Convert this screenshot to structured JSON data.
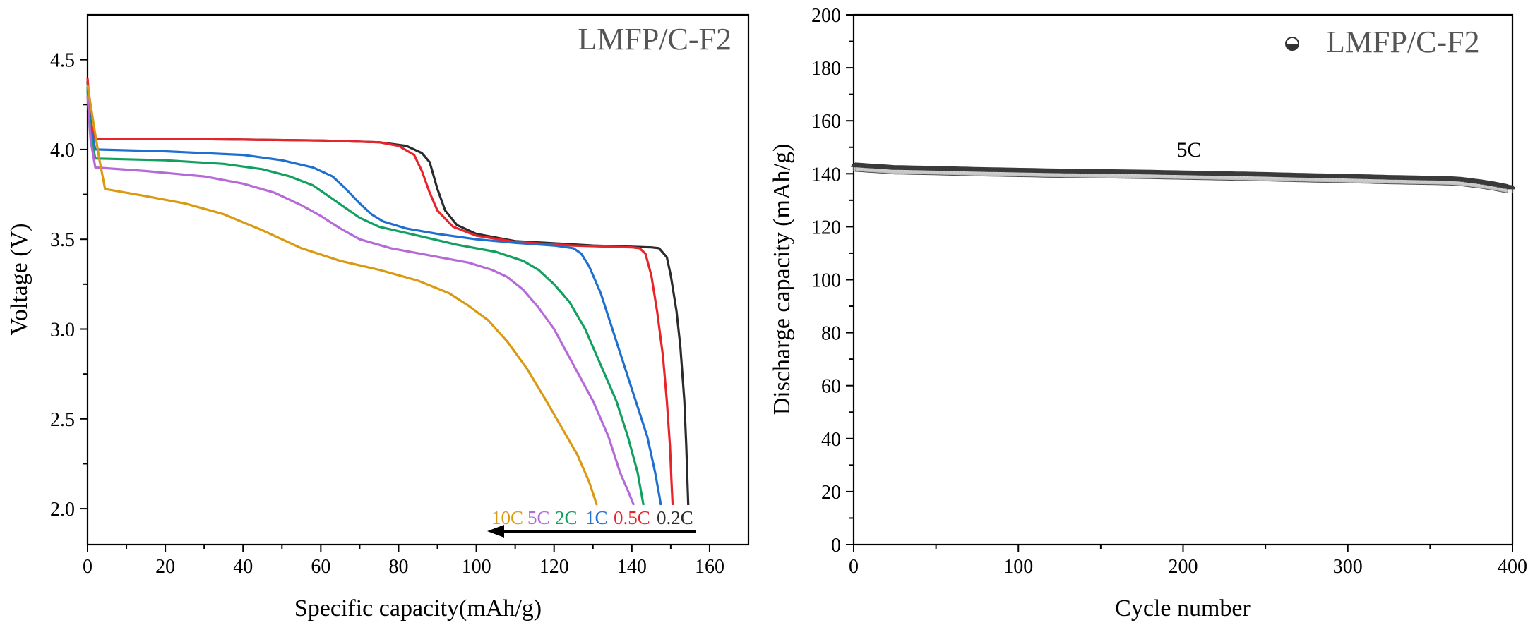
{
  "chart_data": [
    {
      "type": "line",
      "title": "",
      "xlabel": "Specific capacity(mAh/g)",
      "ylabel": "Voltage (V)",
      "xlim": [
        0,
        170
      ],
      "ylim": [
        1.8,
        4.75
      ],
      "xticks": [
        "0",
        "20",
        "40",
        "60",
        "80",
        "100",
        "120",
        "140",
        "160"
      ],
      "yticks": [
        "2.0",
        "2.5",
        "3.0",
        "3.5",
        "4.0",
        "4.5"
      ],
      "annotation": "LMFP/C-F2",
      "legend_labels": [
        "10C",
        "5C",
        "2C",
        "1C",
        "0.5C",
        "0.2C"
      ],
      "series": [
        {
          "name": "0.2C",
          "color": "#2b2b2b",
          "points": [
            [
              0,
              4.38
            ],
            [
              0.8,
              4.15
            ],
            [
              2,
              4.06
            ],
            [
              20,
              4.06
            ],
            [
              40,
              4.055
            ],
            [
              60,
              4.05
            ],
            [
              75,
              4.04
            ],
            [
              82,
              4.02
            ],
            [
              86,
              3.98
            ],
            [
              88,
              3.93
            ],
            [
              90,
              3.78
            ],
            [
              92,
              3.66
            ],
            [
              95,
              3.58
            ],
            [
              100,
              3.53
            ],
            [
              110,
              3.49
            ],
            [
              130,
              3.465
            ],
            [
              145,
              3.455
            ],
            [
              147,
              3.45
            ],
            [
              149,
              3.4
            ],
            [
              150,
              3.3
            ],
            [
              151.5,
              3.1
            ],
            [
              152.5,
              2.9
            ],
            [
              153.5,
              2.6
            ],
            [
              154,
              2.35
            ],
            [
              154.3,
              2.15
            ],
            [
              154.5,
              2.02
            ]
          ]
        },
        {
          "name": "0.5C",
          "color": "#e8242a",
          "points": [
            [
              0,
              4.4
            ],
            [
              0.8,
              4.15
            ],
            [
              2,
              4.06
            ],
            [
              20,
              4.06
            ],
            [
              40,
              4.055
            ],
            [
              60,
              4.05
            ],
            [
              75,
              4.04
            ],
            [
              80,
              4.02
            ],
            [
              84,
              3.97
            ],
            [
              86,
              3.88
            ],
            [
              88,
              3.76
            ],
            [
              90,
              3.66
            ],
            [
              94,
              3.57
            ],
            [
              100,
              3.52
            ],
            [
              110,
              3.485
            ],
            [
              125,
              3.465
            ],
            [
              140,
              3.455
            ],
            [
              142,
              3.45
            ],
            [
              143.5,
              3.42
            ],
            [
              145,
              3.3
            ],
            [
              146.5,
              3.1
            ],
            [
              148,
              2.85
            ],
            [
              149,
              2.6
            ],
            [
              149.8,
              2.35
            ],
            [
              150.2,
              2.15
            ],
            [
              150.5,
              2.02
            ]
          ]
        },
        {
          "name": "1C",
          "color": "#1f6fd0",
          "points": [
            [
              0,
              4.35
            ],
            [
              0.8,
              4.12
            ],
            [
              2,
              4.0
            ],
            [
              20,
              3.99
            ],
            [
              40,
              3.97
            ],
            [
              50,
              3.94
            ],
            [
              58,
              3.9
            ],
            [
              63,
              3.85
            ],
            [
              66,
              3.79
            ],
            [
              70,
              3.7
            ],
            [
              73,
              3.64
            ],
            [
              76,
              3.6
            ],
            [
              82,
              3.56
            ],
            [
              90,
              3.53
            ],
            [
              100,
              3.5
            ],
            [
              110,
              3.48
            ],
            [
              120,
              3.465
            ],
            [
              125,
              3.45
            ],
            [
              127,
              3.42
            ],
            [
              129,
              3.35
            ],
            [
              132,
              3.2
            ],
            [
              135,
              3.0
            ],
            [
              138,
              2.8
            ],
            [
              141,
              2.6
            ],
            [
              144,
              2.4
            ],
            [
              146,
              2.2
            ],
            [
              147.5,
              2.02
            ]
          ]
        },
        {
          "name": "2C",
          "color": "#12a061",
          "points": [
            [
              0,
              4.33
            ],
            [
              0.8,
              4.08
            ],
            [
              2,
              3.95
            ],
            [
              20,
              3.94
            ],
            [
              35,
              3.92
            ],
            [
              45,
              3.89
            ],
            [
              52,
              3.85
            ],
            [
              58,
              3.8
            ],
            [
              62,
              3.74
            ],
            [
              66,
              3.68
            ],
            [
              70,
              3.62
            ],
            [
              75,
              3.57
            ],
            [
              85,
              3.52
            ],
            [
              95,
              3.47
            ],
            [
              105,
              3.43
            ],
            [
              112,
              3.38
            ],
            [
              116,
              3.33
            ],
            [
              120,
              3.25
            ],
            [
              124,
              3.15
            ],
            [
              128,
              3.0
            ],
            [
              132,
              2.8
            ],
            [
              136,
              2.6
            ],
            [
              139,
              2.4
            ],
            [
              141.5,
              2.2
            ],
            [
              143,
              2.02
            ]
          ]
        },
        {
          "name": "5C",
          "color": "#b56ad8",
          "points": [
            [
              0,
              4.3
            ],
            [
              0.8,
              4.05
            ],
            [
              2,
              3.9
            ],
            [
              15,
              3.88
            ],
            [
              30,
              3.85
            ],
            [
              40,
              3.81
            ],
            [
              48,
              3.76
            ],
            [
              55,
              3.69
            ],
            [
              60,
              3.63
            ],
            [
              65,
              3.56
            ],
            [
              70,
              3.5
            ],
            [
              78,
              3.45
            ],
            [
              88,
              3.41
            ],
            [
              98,
              3.37
            ],
            [
              104,
              3.33
            ],
            [
              108,
              3.29
            ],
            [
              112,
              3.22
            ],
            [
              116,
              3.12
            ],
            [
              120,
              3.0
            ],
            [
              125,
              2.8
            ],
            [
              130,
              2.6
            ],
            [
              134,
              2.4
            ],
            [
              137,
              2.2
            ],
            [
              139,
              2.1
            ],
            [
              140.5,
              2.02
            ]
          ]
        },
        {
          "name": "10C",
          "color": "#d99a12",
          "points": [
            [
              0,
              4.36
            ],
            [
              1.5,
              4.15
            ],
            [
              3,
              3.95
            ],
            [
              4.5,
              3.78
            ],
            [
              15,
              3.74
            ],
            [
              25,
              3.7
            ],
            [
              35,
              3.64
            ],
            [
              45,
              3.55
            ],
            [
              55,
              3.45
            ],
            [
              65,
              3.38
            ],
            [
              75,
              3.33
            ],
            [
              85,
              3.27
            ],
            [
              93,
              3.2
            ],
            [
              98,
              3.13
            ],
            [
              103,
              3.05
            ],
            [
              108,
              2.93
            ],
            [
              113,
              2.78
            ],
            [
              118,
              2.6
            ],
            [
              122,
              2.45
            ],
            [
              126,
              2.3
            ],
            [
              129,
              2.15
            ],
            [
              131,
              2.02
            ]
          ]
        }
      ]
    },
    {
      "type": "scatter",
      "title": "",
      "xlabel": "Cycle number",
      "ylabel": "Discharge capacity (mAh/g)",
      "xlim": [
        0,
        400
      ],
      "ylim": [
        0,
        200
      ],
      "xticks": [
        "0",
        "100",
        "200",
        "300",
        "400"
      ],
      "yticks": [
        "0",
        "20",
        "40",
        "60",
        "80",
        "100",
        "120",
        "140",
        "160",
        "180",
        "200"
      ],
      "legend": {
        "name": "LMFP/C-F2",
        "position": "top-right"
      },
      "annotation": "5C",
      "series": [
        {
          "name": "LMFP/C-F2",
          "color": "#3a3a3a",
          "points": [
            [
              1,
              142.5
            ],
            [
              25,
              141.5
            ],
            [
              50,
              141.2
            ],
            [
              75,
              140.8
            ],
            [
              100,
              140.5
            ],
            [
              125,
              140.2
            ],
            [
              150,
              140.0
            ],
            [
              175,
              139.8
            ],
            [
              200,
              139.5
            ],
            [
              225,
              139.2
            ],
            [
              250,
              138.9
            ],
            [
              275,
              138.5
            ],
            [
              300,
              138.2
            ],
            [
              325,
              137.8
            ],
            [
              350,
              137.5
            ],
            [
              360,
              137.4
            ],
            [
              370,
              137.0
            ],
            [
              380,
              136.2
            ],
            [
              390,
              135.2
            ],
            [
              400,
              134.0
            ]
          ]
        }
      ]
    }
  ]
}
